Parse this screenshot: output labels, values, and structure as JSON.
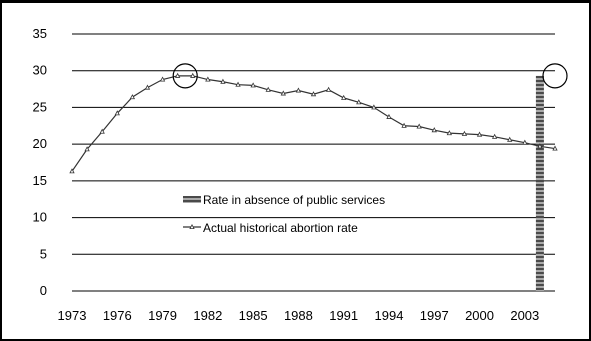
{
  "chart_data": {
    "type": "line",
    "title": "",
    "xlabel": "",
    "ylabel": "",
    "ylim": [
      0,
      35
    ],
    "y_ticks": [
      "0",
      "5",
      "10",
      "15",
      "20",
      "25",
      "30",
      "35"
    ],
    "x_tick_labels": [
      "1973",
      "1976",
      "1979",
      "1982",
      "1985",
      "1988",
      "1991",
      "1994",
      "1997",
      "2000",
      "2003"
    ],
    "x_first_year": 1973,
    "x_last_year": 2005,
    "grid": "horizontal",
    "legend_position": "center-left",
    "series": [
      {
        "name": "Actual historical abortion rate",
        "kind": "line",
        "color": "#333333",
        "marker": "triangle",
        "x": [
          1973,
          1974,
          1975,
          1976,
          1977,
          1978,
          1979,
          1980,
          1981,
          1982,
          1983,
          1984,
          1985,
          1986,
          1987,
          1988,
          1989,
          1990,
          1991,
          1992,
          1993,
          1994,
          1995,
          1996,
          1997,
          1998,
          1999,
          2000,
          2001,
          2002,
          2003,
          2004,
          2005
        ],
        "values": [
          16.3,
          19.3,
          21.7,
          24.2,
          26.4,
          27.7,
          28.8,
          29.3,
          29.3,
          28.8,
          28.5,
          28.1,
          28.0,
          27.4,
          26.9,
          27.3,
          26.8,
          27.4,
          26.3,
          25.7,
          25.0,
          23.7,
          22.5,
          22.4,
          21.9,
          21.5,
          21.4,
          21.3,
          21.0,
          20.6,
          20.2,
          19.7,
          19.4
        ]
      },
      {
        "name": "Rate in absence of public services",
        "kind": "bar",
        "color": "#555555",
        "x": [
          2004
        ],
        "values": [
          29.3
        ]
      }
    ],
    "highlights": [
      {
        "x": 1980.5,
        "y": 29.3
      },
      {
        "x": 2005,
        "y": 29.3
      }
    ]
  }
}
